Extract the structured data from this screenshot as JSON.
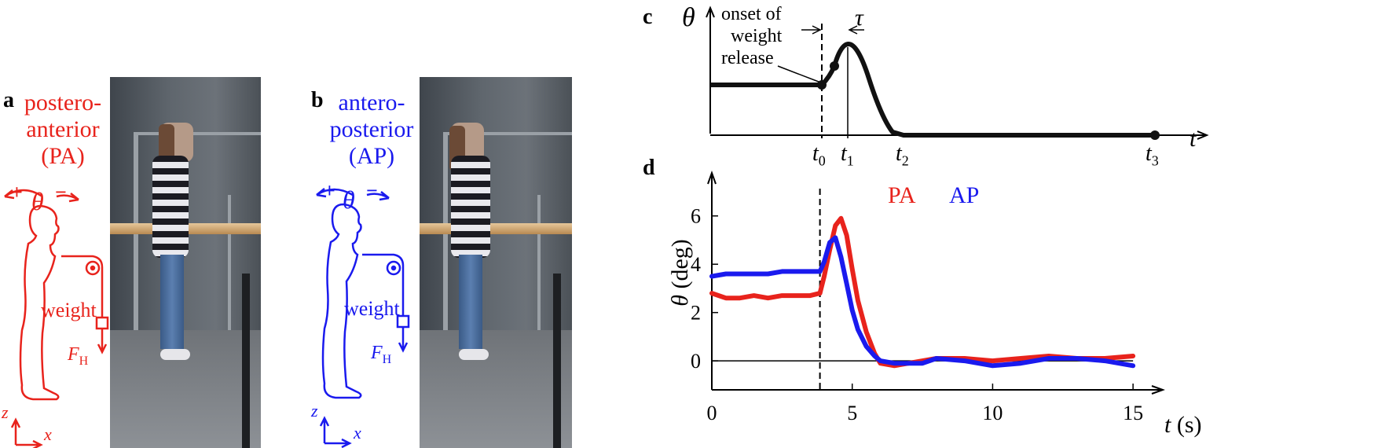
{
  "panels": {
    "a": {
      "letter": "a",
      "title_line1": "postero-",
      "title_line2": "anterior",
      "title_line3": "(PA)",
      "theta_plus": "+",
      "theta_minus": "−",
      "theta": "θ",
      "weight": "weight",
      "force": "F",
      "force_sub": "H",
      "axis_z": "z",
      "axis_x": "x",
      "color": "#e8231c"
    },
    "b": {
      "letter": "b",
      "title_line1": "antero-",
      "title_line2": "posterior",
      "title_line3": "(AP)",
      "theta_plus": "+",
      "theta_minus": "−",
      "theta": "θ",
      "weight": "weight",
      "force": "F",
      "force_sub": "H",
      "axis_z": "z",
      "axis_x": "x",
      "color": "#1a1aee"
    },
    "c": {
      "letter": "c",
      "yaxis": "θ",
      "xaxis": "t",
      "annotation_line1": "onset of",
      "annotation_line2": "weight",
      "annotation_line3": "release",
      "tau": "τ",
      "t0": "t",
      "t0_sub": "0",
      "t1": "t",
      "t1_sub": "1",
      "t2": "t",
      "t2_sub": "2",
      "t3": "t",
      "t3_sub": "3"
    },
    "d": {
      "letter": "d",
      "ylabel_sym": "θ",
      "ylabel_unit": "(deg)",
      "xlabel_sym": "t",
      "xlabel_unit": "(s)"
    }
  },
  "chart_data": {
    "type": "line",
    "xlim": [
      0,
      15.5
    ],
    "ylim": [
      -1.2,
      7
    ],
    "xticks": [
      0,
      5,
      10,
      15
    ],
    "yticks": [
      0,
      2,
      4,
      6
    ],
    "onset_x": 3.85,
    "legend_position": "top",
    "series": [
      {
        "name": "PA",
        "color": "#e8231c",
        "x": [
          0,
          0.5,
          1,
          1.5,
          2,
          2.5,
          3,
          3.5,
          3.85,
          4.0,
          4.2,
          4.4,
          4.6,
          4.8,
          5.0,
          5.2,
          5.5,
          5.8,
          6.0,
          6.5,
          7,
          7.5,
          8,
          9,
          10,
          11,
          12,
          13,
          14,
          15
        ],
        "y": [
          2.8,
          2.6,
          2.6,
          2.7,
          2.6,
          2.7,
          2.7,
          2.7,
          2.8,
          3.5,
          4.6,
          5.6,
          5.9,
          5.2,
          3.8,
          2.5,
          1.2,
          0.3,
          -0.1,
          -0.2,
          -0.1,
          0.0,
          0.1,
          0.1,
          0.0,
          0.1,
          0.2,
          0.1,
          0.1,
          0.2
        ]
      },
      {
        "name": "AP",
        "color": "#1a1aee",
        "x": [
          0,
          0.5,
          1,
          1.5,
          2,
          2.5,
          3,
          3.5,
          3.85,
          4.0,
          4.2,
          4.4,
          4.6,
          4.8,
          5.0,
          5.2,
          5.5,
          5.8,
          6.0,
          6.5,
          7,
          7.5,
          8,
          9,
          10,
          11,
          12,
          13,
          14,
          15
        ],
        "y": [
          3.5,
          3.6,
          3.6,
          3.6,
          3.6,
          3.7,
          3.7,
          3.7,
          3.7,
          4.1,
          4.9,
          5.1,
          4.3,
          3.2,
          2.1,
          1.3,
          0.6,
          0.2,
          0.0,
          -0.1,
          -0.1,
          -0.1,
          0.1,
          0.0,
          -0.2,
          -0.1,
          0.1,
          0.1,
          0.0,
          -0.2
        ]
      }
    ]
  }
}
